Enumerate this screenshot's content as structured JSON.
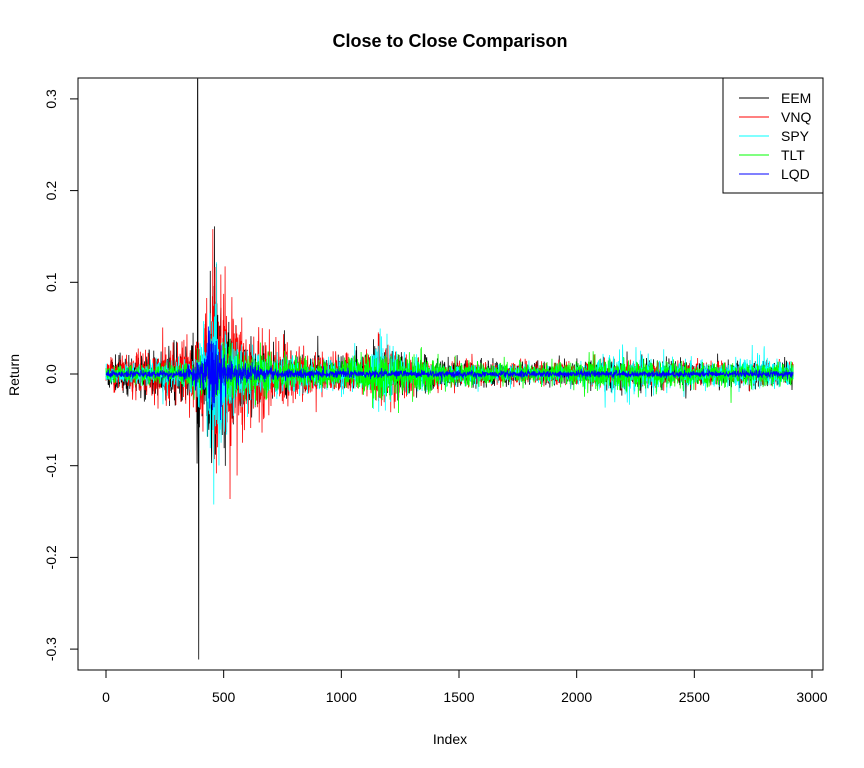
{
  "chart_data": {
    "type": "line",
    "title": "Close to Close Comparison",
    "xlabel": "Index",
    "ylabel": "Return",
    "xlim": [
      0,
      2920
    ],
    "ylim": [
      -0.32,
      0.32
    ],
    "x_ticks": [
      0,
      500,
      1000,
      1500,
      2000,
      2500,
      3000
    ],
    "x_tick_labels": [
      "0",
      "500",
      "1000",
      "1500",
      "2000",
      "2500",
      "3000"
    ],
    "y_ticks": [
      -0.3,
      -0.2,
      -0.1,
      0.0,
      0.1,
      0.2,
      0.3
    ],
    "y_tick_labels": [
      "-0.3",
      "-0.2",
      "-0.1",
      "0.0",
      "0.1",
      "0.2",
      "0.3"
    ],
    "grid": false,
    "legend_position": "top-right",
    "series": [
      {
        "name": "EEM",
        "color": "#000000",
        "points_x": [
          0,
          30,
          120,
          250,
          320,
          385,
          390,
          400,
          430,
          445,
          455,
          470,
          500,
          560,
          650,
          800,
          900,
          1000,
          1100,
          1160,
          1250,
          1350,
          1500,
          1600,
          1700,
          1800,
          1900,
          2000,
          2100,
          2200,
          2300,
          2400,
          2500,
          2600,
          2700,
          2800,
          2920
        ],
        "volatility": [
          0.015,
          0.02,
          0.025,
          0.03,
          0.035,
          0.04,
          0.35,
          0.05,
          0.08,
          0.12,
          0.15,
          0.11,
          0.08,
          0.05,
          0.03,
          0.025,
          0.02,
          0.018,
          0.02,
          0.03,
          0.025,
          0.02,
          0.015,
          0.015,
          0.013,
          0.012,
          0.013,
          0.014,
          0.015,
          0.02,
          0.018,
          0.016,
          0.015,
          0.014,
          0.013,
          0.015,
          0.014
        ],
        "seed": 11
      },
      {
        "name": "VNQ",
        "color": "#ff0000",
        "points_x": [
          0,
          120,
          250,
          320,
          400,
          440,
          470,
          500,
          560,
          600,
          700,
          850,
          1000,
          1100,
          1160,
          1250,
          1400,
          1600,
          1800,
          2000,
          2200,
          2400,
          2600,
          2800,
          2920
        ],
        "volatility": [
          0.015,
          0.025,
          0.03,
          0.035,
          0.05,
          0.09,
          0.17,
          0.11,
          0.09,
          0.06,
          0.04,
          0.03,
          0.02,
          0.02,
          0.05,
          0.025,
          0.016,
          0.014,
          0.012,
          0.013,
          0.016,
          0.014,
          0.013,
          0.013,
          0.012
        ],
        "seed": 23
      },
      {
        "name": "SPY",
        "color": "#00ffff",
        "points_x": [
          0,
          200,
          350,
          420,
          450,
          470,
          500,
          560,
          700,
          900,
          1100,
          1160,
          1250,
          1500,
          1800,
          2000,
          2200,
          2400,
          2600,
          2800,
          2920
        ],
        "volatility": [
          0.01,
          0.015,
          0.02,
          0.06,
          0.1,
          0.12,
          0.07,
          0.04,
          0.025,
          0.018,
          0.015,
          0.04,
          0.02,
          0.012,
          0.01,
          0.012,
          0.03,
          0.015,
          0.012,
          0.025,
          0.012
        ],
        "seed": 37
      },
      {
        "name": "TLT",
        "color": "#00ff00",
        "points_x": [
          0,
          300,
          450,
          500,
          600,
          800,
          1000,
          1160,
          1250,
          1500,
          1800,
          2000,
          2200,
          2400,
          2600,
          2800,
          2920
        ],
        "volatility": [
          0.01,
          0.012,
          0.03,
          0.035,
          0.025,
          0.018,
          0.017,
          0.03,
          0.025,
          0.014,
          0.012,
          0.016,
          0.018,
          0.016,
          0.015,
          0.014,
          0.013
        ],
        "seed": 53
      },
      {
        "name": "LQD",
        "color": "#0000ff",
        "points_x": [
          0,
          300,
          420,
          445,
          470,
          520,
          700,
          1000,
          1500,
          2000,
          2500,
          2920
        ],
        "volatility": [
          0.004,
          0.005,
          0.02,
          0.06,
          0.04,
          0.015,
          0.007,
          0.005,
          0.004,
          0.004,
          0.004,
          0.004
        ],
        "seed": 71
      }
    ]
  }
}
